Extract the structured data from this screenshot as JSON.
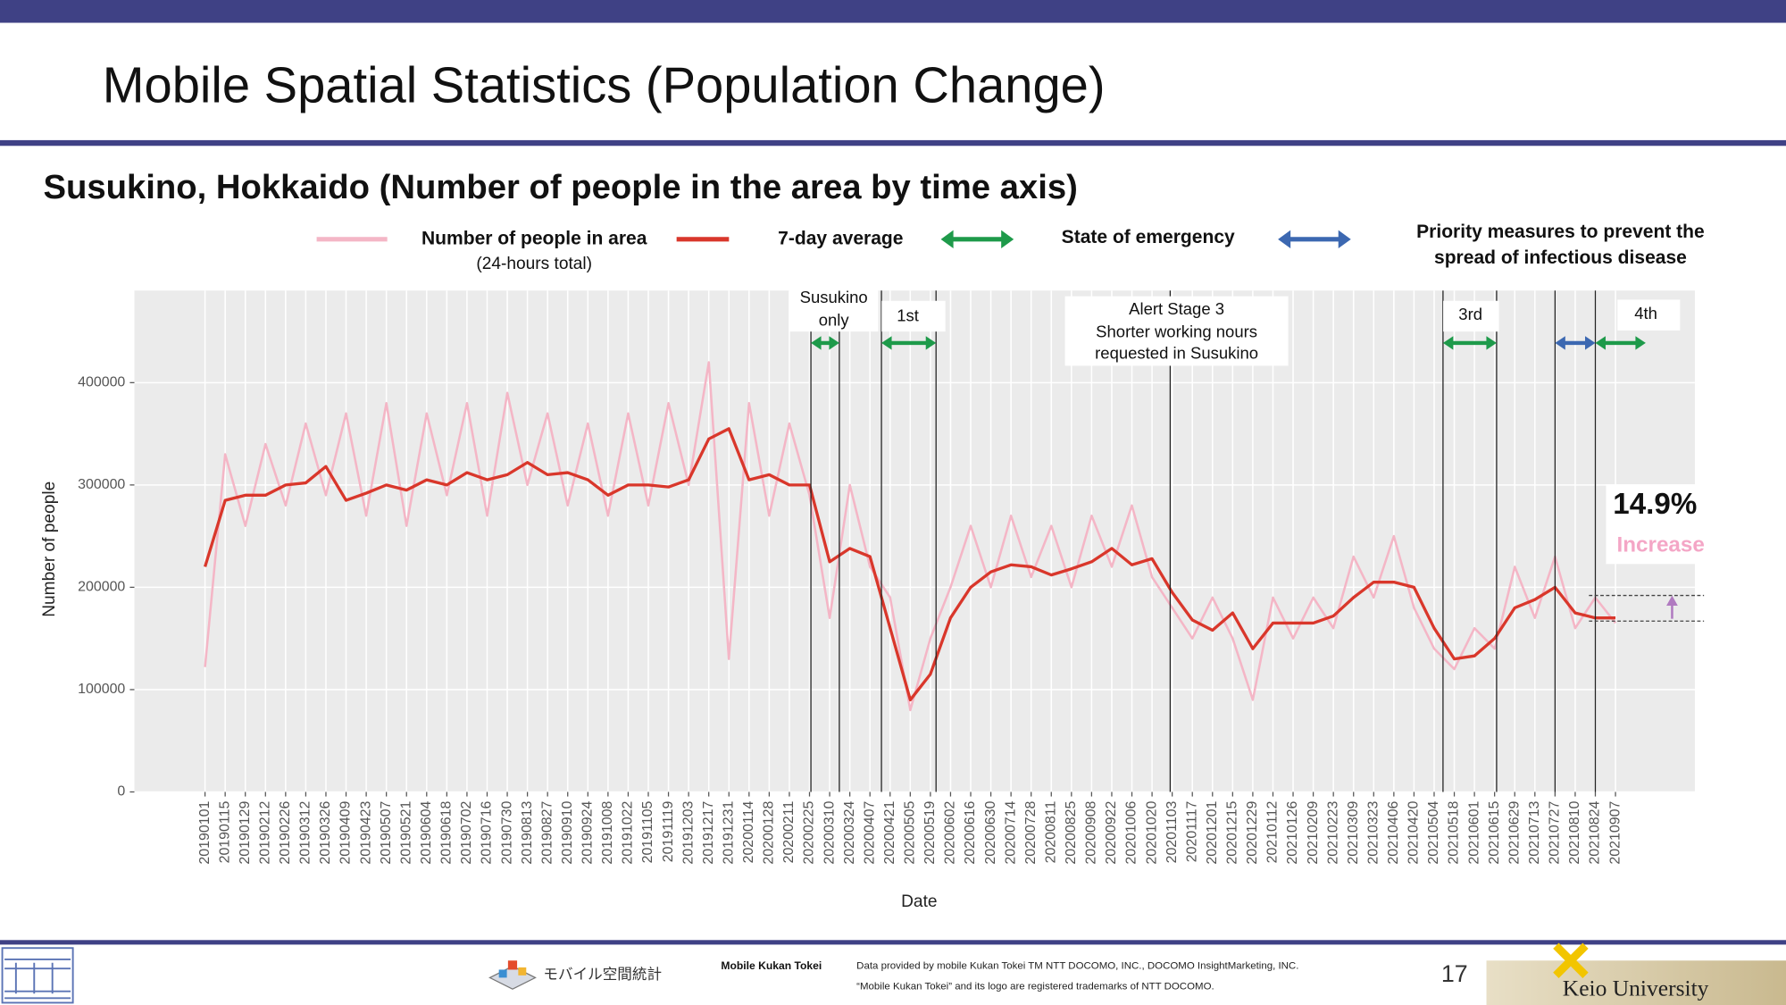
{
  "header": {
    "title": "Mobile Spatial Statistics (Population Change)"
  },
  "chart_data": {
    "type": "line",
    "title": "Susukino, Hokkaido (Number of people in the area by time axis)",
    "x_label": "Date",
    "y_label": "Number of people",
    "categories": [
      "20190101",
      "20190115",
      "20190129",
      "20190212",
      "20190226",
      "20190312",
      "20190326",
      "20190409",
      "20190423",
      "20190507",
      "20190521",
      "20190604",
      "20190618",
      "20190702",
      "20190716",
      "20190730",
      "20190813",
      "20190827",
      "20190910",
      "20190924",
      "20191008",
      "20191022",
      "20191105",
      "20191119",
      "20191203",
      "20191217",
      "20191231",
      "20200114",
      "20200128",
      "20200211",
      "20200225",
      "20200310",
      "20200324",
      "20200407",
      "20200421",
      "20200505",
      "20200519",
      "20200602",
      "20200616",
      "20200630",
      "20200714",
      "20200728",
      "20200811",
      "20200825",
      "20200908",
      "20200922",
      "20201006",
      "20201020",
      "20201103",
      "20201117",
      "20201201",
      "20201215",
      "20201229",
      "20210112",
      "20210126",
      "20210209",
      "20210223",
      "20210309",
      "20210323",
      "20210406",
      "20210420",
      "20210504",
      "20210518",
      "20210601",
      "20210615",
      "20210629",
      "20210713",
      "20210727",
      "20210810",
      "20210824",
      "20210907"
    ],
    "series": [
      {
        "name": "Number of people in area",
        "note": "(24-hours total)",
        "color": "#f4b6c6",
        "values": [
          122000,
          330000,
          260000,
          340000,
          280000,
          360000,
          290000,
          370000,
          270000,
          380000,
          260000,
          370000,
          290000,
          380000,
          270000,
          390000,
          300000,
          370000,
          280000,
          360000,
          270000,
          370000,
          280000,
          380000,
          300000,
          420000,
          130000,
          380000,
          270000,
          360000,
          290000,
          170000,
          300000,
          220000,
          190000,
          80000,
          150000,
          200000,
          260000,
          200000,
          270000,
          210000,
          260000,
          200000,
          270000,
          220000,
          280000,
          210000,
          180000,
          150000,
          190000,
          150000,
          90000,
          190000,
          150000,
          190000,
          160000,
          230000,
          190000,
          250000,
          180000,
          140000,
          120000,
          160000,
          140000,
          220000,
          170000,
          230000,
          160000,
          190000,
          165000
        ]
      },
      {
        "name": "7-day average",
        "color": "#d9372b",
        "values": [
          220000,
          285000,
          290000,
          290000,
          300000,
          302000,
          318000,
          285000,
          292000,
          300000,
          295000,
          305000,
          300000,
          312000,
          305000,
          310000,
          322000,
          310000,
          312000,
          305000,
          290000,
          300000,
          300000,
          298000,
          305000,
          345000,
          355000,
          305000,
          310000,
          300000,
          300000,
          225000,
          238000,
          230000,
          160000,
          90000,
          115000,
          170000,
          200000,
          215000,
          222000,
          220000,
          212000,
          218000,
          225000,
          238000,
          222000,
          228000,
          195000,
          168000,
          158000,
          175000,
          140000,
          165000,
          165000,
          165000,
          172000,
          190000,
          205000,
          205000,
          200000,
          160000,
          130000,
          133000,
          150000,
          180000,
          188000,
          200000,
          175000,
          170000,
          170000
        ]
      }
    ],
    "ylim": [
      0,
      490000
    ],
    "yticks": [
      0,
      100000,
      200000,
      300000,
      400000
    ],
    "grid": true,
    "arrow_legend": [
      {
        "name": [
          "State of emergency"
        ],
        "color": "#1e9a4a"
      },
      {
        "name": [
          "Priority measures to prevent the",
          "spread of infectious disease"
        ],
        "color": "#3c68b1"
      }
    ],
    "event_lines": [
      30.07,
      31.48,
      33.57,
      36.28,
      47.9,
      61.44,
      64.1,
      67.0,
      69.0
    ],
    "annotations": [
      {
        "label": [
          "Susukino",
          "only"
        ],
        "span": [
          30.07,
          31.48
        ],
        "color": "#1e9a4a"
      },
      {
        "label": [
          "1st"
        ],
        "span": [
          33.57,
          36.28
        ],
        "color": "#1e9a4a"
      },
      {
        "label": [
          "Alert Stage 3",
          "Shorter working nours",
          "requested in Susukino"
        ]
      },
      {
        "label": [
          "3rd"
        ],
        "span": [
          61.44,
          64.1
        ],
        "color": "#1e9a4a"
      },
      {
        "span": [
          67.0,
          69.0
        ],
        "color": "#3c68b1"
      },
      {
        "label": [
          "4th"
        ],
        "span": [
          69.0,
          71.5
        ],
        "color": "#1e9a4a"
      }
    ],
    "change": {
      "label": "14.9%",
      "text": "Increase",
      "levels": [
        167000,
        192000
      ]
    }
  },
  "footer": {
    "logo_text": "モバイル空間統計",
    "brand": "Mobile Kukan Tokei",
    "notes": [
      "Data provided by mobile Kukan Tokei TM NTT DOCOMO, INC., DOCOMO InsightMarketing, INC.",
      "“Mobile Kukan Tokei” and its logo are registered trademarks of NTT DOCOMO."
    ],
    "page": "17",
    "university": "Keio University"
  }
}
